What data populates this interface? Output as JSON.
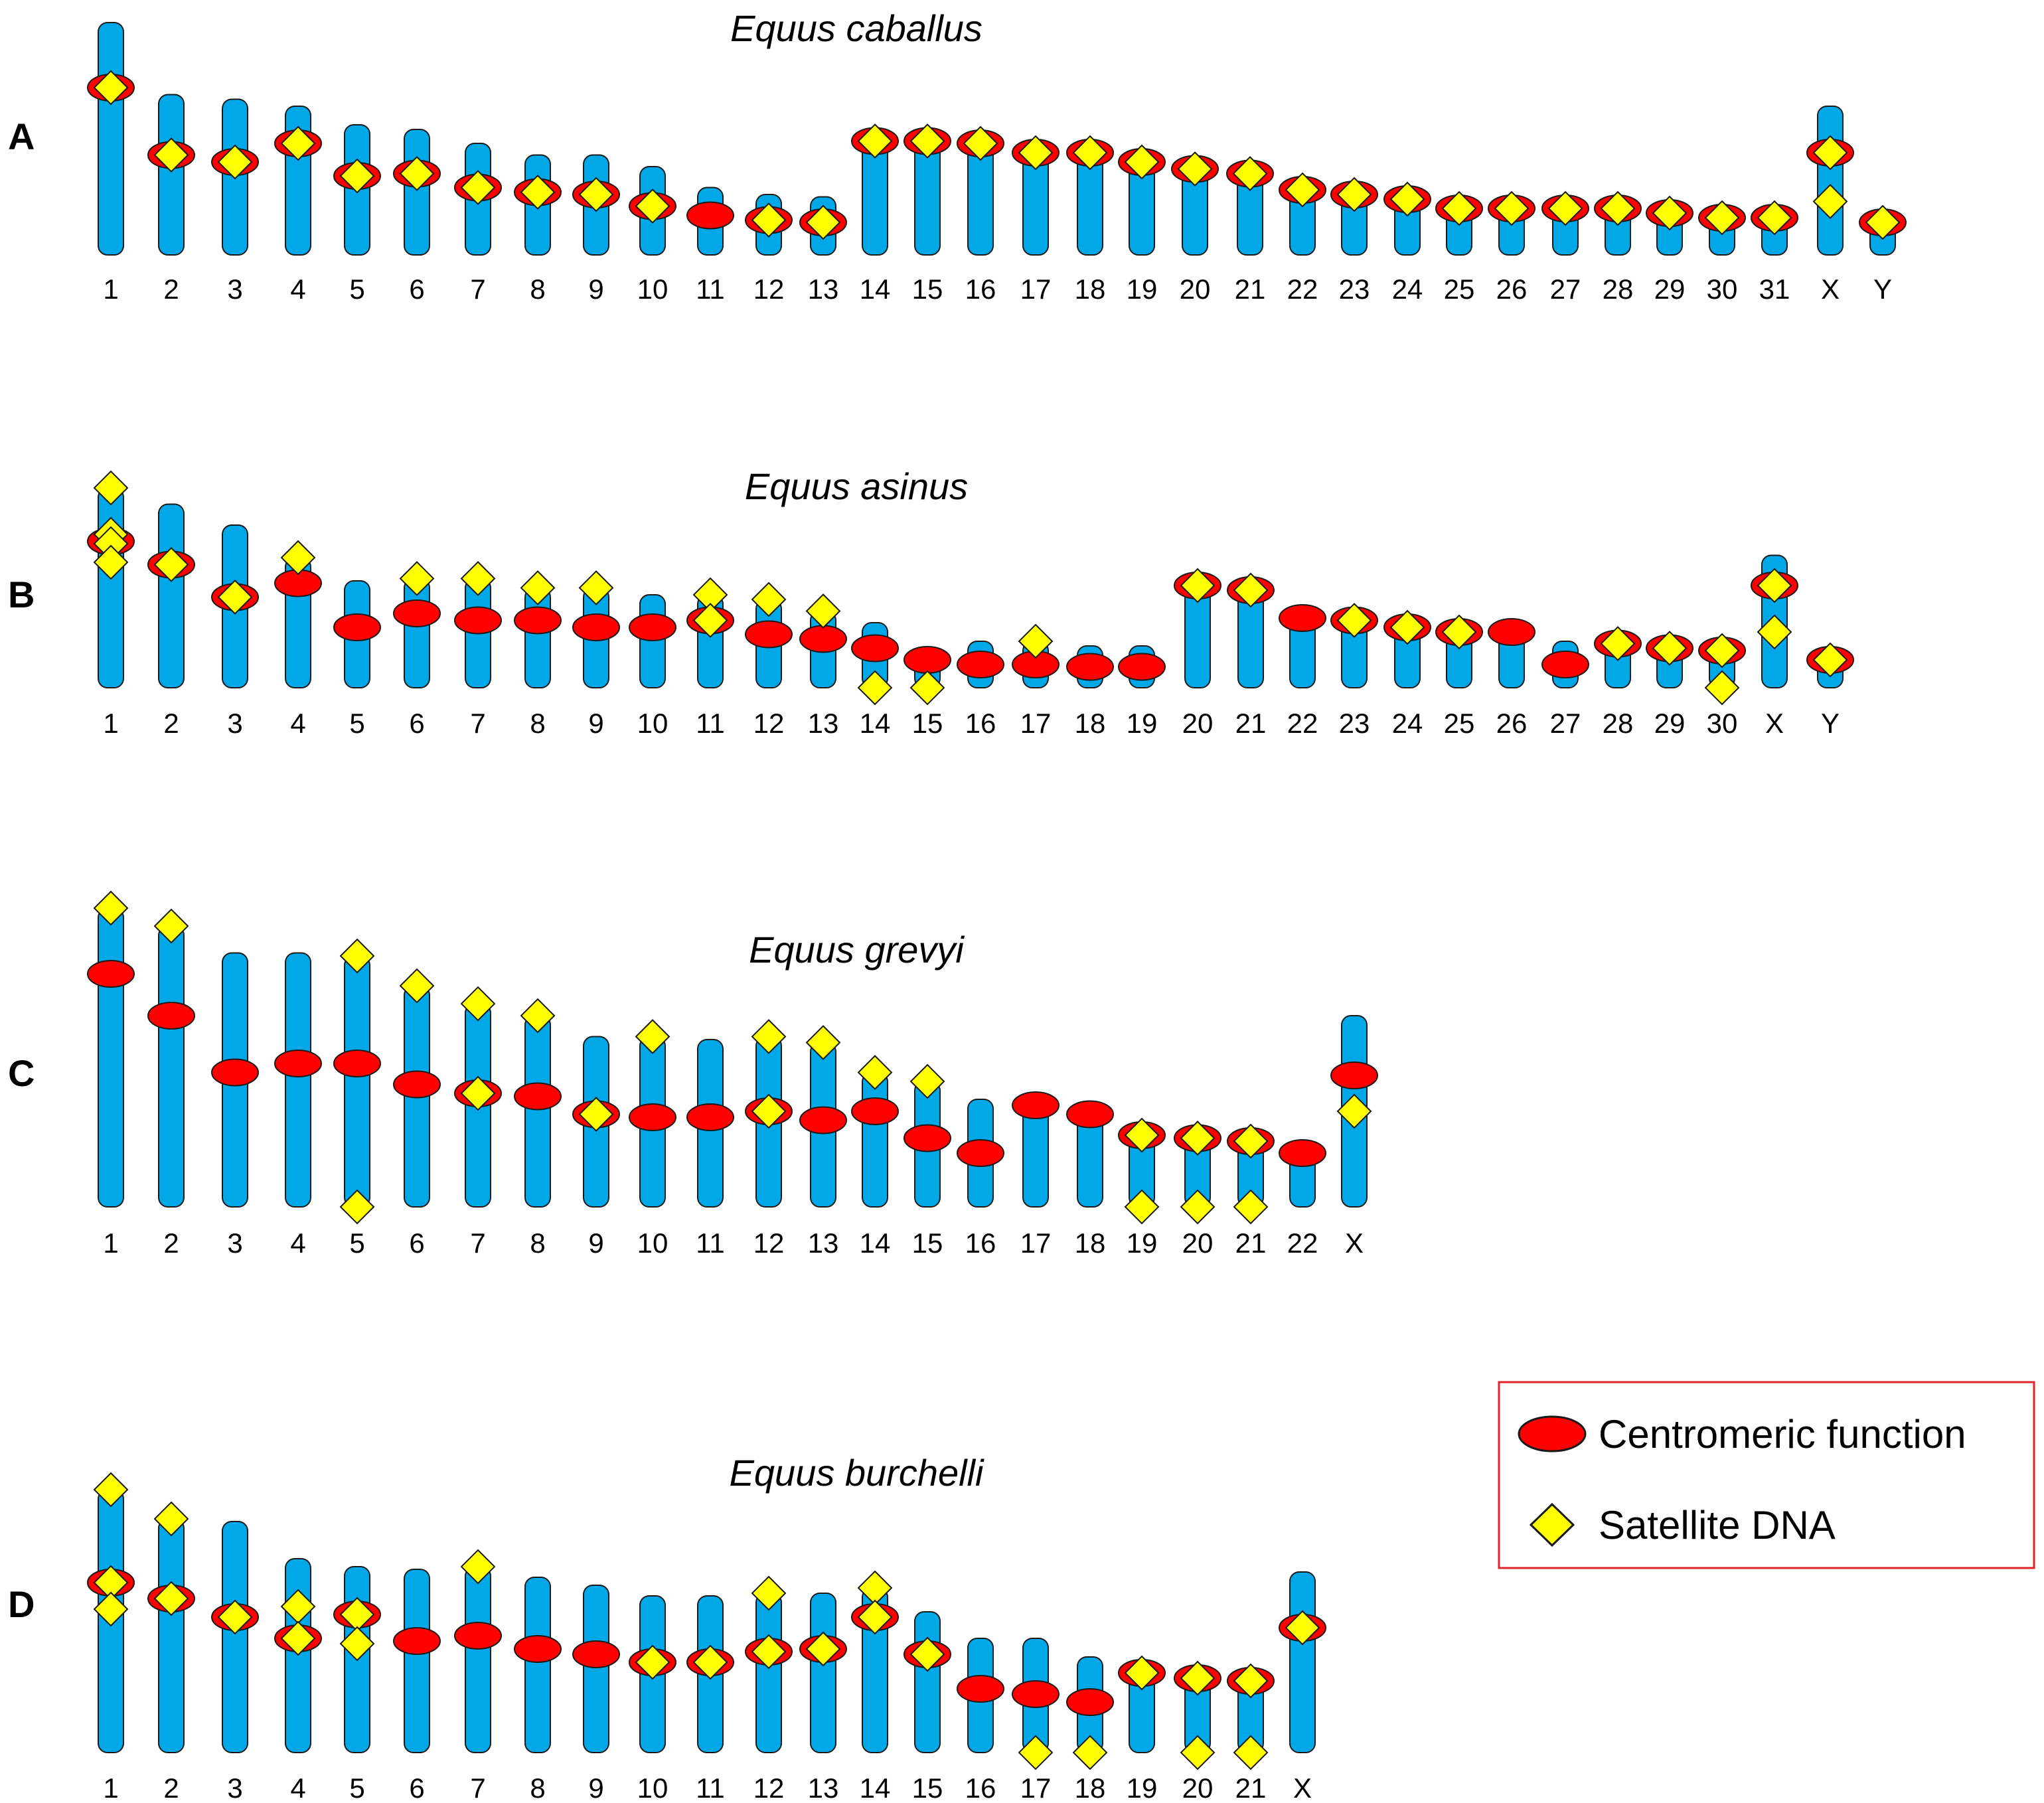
{
  "colors": {
    "chromosome_fill": "#00a8e8",
    "centromere_fill": "#ff0000",
    "satellite_fill": "#ffff00",
    "legend_border": "#e0242a",
    "outline": "#1a1a1a"
  },
  "legend": {
    "centromere_label": "Centromeric function",
    "satellite_label": "Satellite DNA"
  },
  "panels": [
    {
      "letter": "A",
      "species": "Equus caballus",
      "chromosomes": [
        {
          "label": "1",
          "len": 1.0,
          "cen": 0.72,
          "sat": [
            0.72
          ]
        },
        {
          "label": "2",
          "len": 0.69,
          "cen": 0.43,
          "sat": [
            0.43
          ]
        },
        {
          "label": "3",
          "len": 0.67,
          "cen": 0.4,
          "sat": [
            0.4
          ]
        },
        {
          "label": "4",
          "len": 0.64,
          "cen": 0.48,
          "sat": [
            0.48
          ]
        },
        {
          "label": "5",
          "len": 0.56,
          "cen": 0.34,
          "sat": [
            0.34
          ]
        },
        {
          "label": "6",
          "len": 0.54,
          "cen": 0.35,
          "sat": [
            0.35
          ]
        },
        {
          "label": "7",
          "len": 0.48,
          "cen": 0.29,
          "sat": [
            0.29
          ]
        },
        {
          "label": "8",
          "len": 0.43,
          "cen": 0.27,
          "sat": [
            0.27
          ]
        },
        {
          "label": "9",
          "len": 0.43,
          "cen": 0.26,
          "sat": [
            0.26
          ]
        },
        {
          "label": "10",
          "len": 0.38,
          "cen": 0.21,
          "sat": [
            0.21
          ]
        },
        {
          "label": "11",
          "len": 0.29,
          "cen": 0.17,
          "sat": []
        },
        {
          "label": "12",
          "len": 0.26,
          "cen": 0.15,
          "sat": [
            0.15
          ]
        },
        {
          "label": "13",
          "len": 0.25,
          "cen": 0.14,
          "sat": [
            0.14
          ]
        },
        {
          "label": "14",
          "len": 0.53,
          "cen": 0.49,
          "sat": [
            0.49
          ]
        },
        {
          "label": "15",
          "len": 0.53,
          "cen": 0.49,
          "sat": [
            0.49
          ]
        },
        {
          "label": "16",
          "len": 0.52,
          "cen": 0.48,
          "sat": [
            0.48
          ]
        },
        {
          "label": "17",
          "len": 0.48,
          "cen": 0.44,
          "sat": [
            0.44
          ]
        },
        {
          "label": "18",
          "len": 0.48,
          "cen": 0.44,
          "sat": [
            0.44
          ]
        },
        {
          "label": "19",
          "len": 0.44,
          "cen": 0.4,
          "sat": [
            0.4
          ]
        },
        {
          "label": "20",
          "len": 0.41,
          "cen": 0.37,
          "sat": [
            0.37
          ]
        },
        {
          "label": "21",
          "len": 0.39,
          "cen": 0.35,
          "sat": [
            0.35
          ]
        },
        {
          "label": "22",
          "len": 0.32,
          "cen": 0.28,
          "sat": [
            0.28
          ]
        },
        {
          "label": "23",
          "len": 0.29,
          "cen": 0.26,
          "sat": [
            0.26
          ]
        },
        {
          "label": "24",
          "len": 0.27,
          "cen": 0.24,
          "sat": [
            0.24
          ]
        },
        {
          "label": "25",
          "len": 0.23,
          "cen": 0.2,
          "sat": [
            0.2
          ]
        },
        {
          "label": "26",
          "len": 0.23,
          "cen": 0.2,
          "sat": [
            0.2
          ]
        },
        {
          "label": "27",
          "len": 0.23,
          "cen": 0.2,
          "sat": [
            0.2
          ]
        },
        {
          "label": "28",
          "len": 0.23,
          "cen": 0.2,
          "sat": [
            0.2
          ]
        },
        {
          "label": "29",
          "len": 0.21,
          "cen": 0.18,
          "sat": [
            0.18
          ]
        },
        {
          "label": "30",
          "len": 0.19,
          "cen": 0.16,
          "sat": [
            0.16
          ]
        },
        {
          "label": "31",
          "len": 0.19,
          "cen": 0.16,
          "sat": [
            0.16
          ]
        },
        {
          "label": "X",
          "len": 0.64,
          "cen": 0.44,
          "sat": [
            0.44,
            0.23
          ]
        },
        {
          "label": "Y",
          "len": 0.17,
          "cen": 0.14,
          "sat": [
            0.14
          ]
        }
      ]
    },
    {
      "letter": "B",
      "species": "Equus asinus",
      "chromosomes": [
        {
          "label": "1",
          "len": 0.86,
          "cen": 0.63,
          "sat": [
            0.86,
            0.66,
            0.62,
            0.54
          ]
        },
        {
          "label": "2",
          "len": 0.79,
          "cen": 0.53,
          "sat": [
            0.53
          ]
        },
        {
          "label": "3",
          "len": 0.7,
          "cen": 0.39,
          "sat": [
            0.39
          ]
        },
        {
          "label": "4",
          "len": 0.56,
          "cen": 0.45,
          "sat": [
            0.56
          ]
        },
        {
          "label": "5",
          "len": 0.46,
          "cen": 0.26,
          "sat": []
        },
        {
          "label": "6",
          "len": 0.47,
          "cen": 0.32,
          "sat": [
            0.47
          ]
        },
        {
          "label": "7",
          "len": 0.47,
          "cen": 0.29,
          "sat": [
            0.47
          ]
        },
        {
          "label": "8",
          "len": 0.43,
          "cen": 0.29,
          "sat": [
            0.43
          ]
        },
        {
          "label": "9",
          "len": 0.43,
          "cen": 0.26,
          "sat": [
            0.43
          ]
        },
        {
          "label": "10",
          "len": 0.4,
          "cen": 0.26,
          "sat": []
        },
        {
          "label": "11",
          "len": 0.4,
          "cen": 0.29,
          "sat": [
            0.4,
            0.29
          ]
        },
        {
          "label": "12",
          "len": 0.38,
          "cen": 0.23,
          "sat": [
            0.38
          ]
        },
        {
          "label": "13",
          "len": 0.33,
          "cen": 0.21,
          "sat": [
            0.33
          ]
        },
        {
          "label": "14",
          "len": 0.28,
          "cen": 0.17,
          "sat": [
            0.0
          ]
        },
        {
          "label": "15",
          "len": 0.16,
          "cen": 0.12,
          "sat": [
            0.0
          ]
        },
        {
          "label": "16",
          "len": 0.2,
          "cen": 0.1,
          "sat": []
        },
        {
          "label": "17",
          "len": 0.2,
          "cen": 0.1,
          "sat": [
            0.2
          ]
        },
        {
          "label": "18",
          "len": 0.18,
          "cen": 0.09,
          "sat": []
        },
        {
          "label": "19",
          "len": 0.18,
          "cen": 0.09,
          "sat": []
        },
        {
          "label": "20",
          "len": 0.45,
          "cen": 0.44,
          "sat": [
            0.44
          ]
        },
        {
          "label": "21",
          "len": 0.43,
          "cen": 0.42,
          "sat": [
            0.42
          ]
        },
        {
          "label": "22",
          "len": 0.3,
          "cen": 0.3,
          "sat": []
        },
        {
          "label": "23",
          "len": 0.3,
          "cen": 0.29,
          "sat": [
            0.29
          ]
        },
        {
          "label": "24",
          "len": 0.27,
          "cen": 0.26,
          "sat": [
            0.26
          ]
        },
        {
          "label": "25",
          "len": 0.25,
          "cen": 0.24,
          "sat": [
            0.24
          ]
        },
        {
          "label": "26",
          "len": 0.25,
          "cen": 0.24,
          "sat": []
        },
        {
          "label": "27",
          "len": 0.2,
          "cen": 0.1,
          "sat": []
        },
        {
          "label": "28",
          "len": 0.21,
          "cen": 0.19,
          "sat": [
            0.19
          ]
        },
        {
          "label": "29",
          "len": 0.19,
          "cen": 0.17,
          "sat": [
            0.17
          ]
        },
        {
          "label": "30",
          "len": 0.18,
          "cen": 0.16,
          "sat": [
            0.16,
            0.0
          ]
        },
        {
          "label": "X",
          "len": 0.57,
          "cen": 0.44,
          "sat": [
            0.44,
            0.24
          ]
        },
        {
          "label": "Y",
          "len": 0.13,
          "cen": 0.12,
          "sat": [
            0.12
          ]
        }
      ]
    },
    {
      "letter": "C",
      "species": "Equus grevyi",
      "chromosomes": [
        {
          "label": "1",
          "len": 1.0,
          "cen": 0.78,
          "sat": [
            1.0
          ]
        },
        {
          "label": "2",
          "len": 0.94,
          "cen": 0.64,
          "sat": [
            0.94
          ]
        },
        {
          "label": "3",
          "len": 0.85,
          "cen": 0.45,
          "sat": []
        },
        {
          "label": "4",
          "len": 0.85,
          "cen": 0.48,
          "sat": []
        },
        {
          "label": "5",
          "len": 0.84,
          "cen": 0.48,
          "sat": [
            0.84,
            0.0
          ]
        },
        {
          "label": "6",
          "len": 0.74,
          "cen": 0.41,
          "sat": [
            0.74
          ]
        },
        {
          "label": "7",
          "len": 0.68,
          "cen": 0.38,
          "sat": [
            0.68,
            0.38
          ]
        },
        {
          "label": "8",
          "len": 0.64,
          "cen": 0.37,
          "sat": [
            0.64
          ]
        },
        {
          "label": "9",
          "len": 0.57,
          "cen": 0.31,
          "sat": [
            0.31
          ]
        },
        {
          "label": "10",
          "len": 0.57,
          "cen": 0.3,
          "sat": [
            0.57
          ]
        },
        {
          "label": "11",
          "len": 0.56,
          "cen": 0.3,
          "sat": []
        },
        {
          "label": "12",
          "len": 0.57,
          "cen": 0.32,
          "sat": [
            0.57,
            0.32
          ]
        },
        {
          "label": "13",
          "len": 0.55,
          "cen": 0.29,
          "sat": [
            0.55
          ]
        },
        {
          "label": "14",
          "len": 0.45,
          "cen": 0.32,
          "sat": [
            0.45
          ]
        },
        {
          "label": "15",
          "len": 0.42,
          "cen": 0.23,
          "sat": [
            0.42
          ]
        },
        {
          "label": "16",
          "len": 0.36,
          "cen": 0.18,
          "sat": []
        },
        {
          "label": "17",
          "len": 0.34,
          "cen": 0.34,
          "sat": []
        },
        {
          "label": "18",
          "len": 0.31,
          "cen": 0.31,
          "sat": []
        },
        {
          "label": "19",
          "len": 0.24,
          "cen": 0.24,
          "sat": [
            0.24,
            0.0
          ]
        },
        {
          "label": "20",
          "len": 0.23,
          "cen": 0.23,
          "sat": [
            0.23,
            0.0
          ]
        },
        {
          "label": "21",
          "len": 0.22,
          "cen": 0.22,
          "sat": [
            0.22,
            0.0
          ]
        },
        {
          "label": "22",
          "len": 0.18,
          "cen": 0.18,
          "sat": []
        },
        {
          "label": "X",
          "len": 0.64,
          "cen": 0.44,
          "sat": [
            0.32
          ]
        }
      ]
    },
    {
      "letter": "D",
      "species": "Equus burchelli",
      "chromosomes": [
        {
          "label": "1",
          "len": 0.99,
          "cen": 0.64,
          "sat": [
            0.99,
            0.64,
            0.54
          ]
        },
        {
          "label": "2",
          "len": 0.88,
          "cen": 0.58,
          "sat": [
            0.88,
            0.58
          ]
        },
        {
          "label": "3",
          "len": 0.87,
          "cen": 0.51,
          "sat": [
            0.51
          ]
        },
        {
          "label": "4",
          "len": 0.73,
          "cen": 0.43,
          "sat": [
            0.55,
            0.43
          ]
        },
        {
          "label": "5",
          "len": 0.7,
          "cen": 0.52,
          "sat": [
            0.52,
            0.41
          ]
        },
        {
          "label": "6",
          "len": 0.69,
          "cen": 0.42,
          "sat": []
        },
        {
          "label": "7",
          "len": 0.7,
          "cen": 0.44,
          "sat": [
            0.7
          ]
        },
        {
          "label": "8",
          "len": 0.66,
          "cen": 0.39,
          "sat": []
        },
        {
          "label": "9",
          "len": 0.63,
          "cen": 0.37,
          "sat": []
        },
        {
          "label": "10",
          "len": 0.59,
          "cen": 0.34,
          "sat": [
            0.34
          ]
        },
        {
          "label": "11",
          "len": 0.59,
          "cen": 0.34,
          "sat": [
            0.34
          ]
        },
        {
          "label": "12",
          "len": 0.6,
          "cen": 0.38,
          "sat": [
            0.6,
            0.38
          ]
        },
        {
          "label": "13",
          "len": 0.6,
          "cen": 0.39,
          "sat": [
            0.39
          ]
        },
        {
          "label": "14",
          "len": 0.62,
          "cen": 0.51,
          "sat": [
            0.62,
            0.51
          ]
        },
        {
          "label": "15",
          "len": 0.53,
          "cen": 0.37,
          "sat": [
            0.37
          ]
        },
        {
          "label": "16",
          "len": 0.43,
          "cen": 0.24,
          "sat": []
        },
        {
          "label": "17",
          "len": 0.43,
          "cen": 0.22,
          "sat": [
            0.0
          ]
        },
        {
          "label": "18",
          "len": 0.36,
          "cen": 0.19,
          "sat": [
            0.0
          ]
        },
        {
          "label": "19",
          "len": 0.3,
          "cen": 0.3,
          "sat": [
            0.3
          ]
        },
        {
          "label": "20",
          "len": 0.28,
          "cen": 0.28,
          "sat": [
            0.28,
            0.0
          ]
        },
        {
          "label": "21",
          "len": 0.27,
          "cen": 0.27,
          "sat": [
            0.27,
            0.0
          ]
        },
        {
          "label": "X",
          "len": 0.68,
          "cen": 0.47,
          "sat": [
            0.47
          ]
        }
      ]
    }
  ]
}
